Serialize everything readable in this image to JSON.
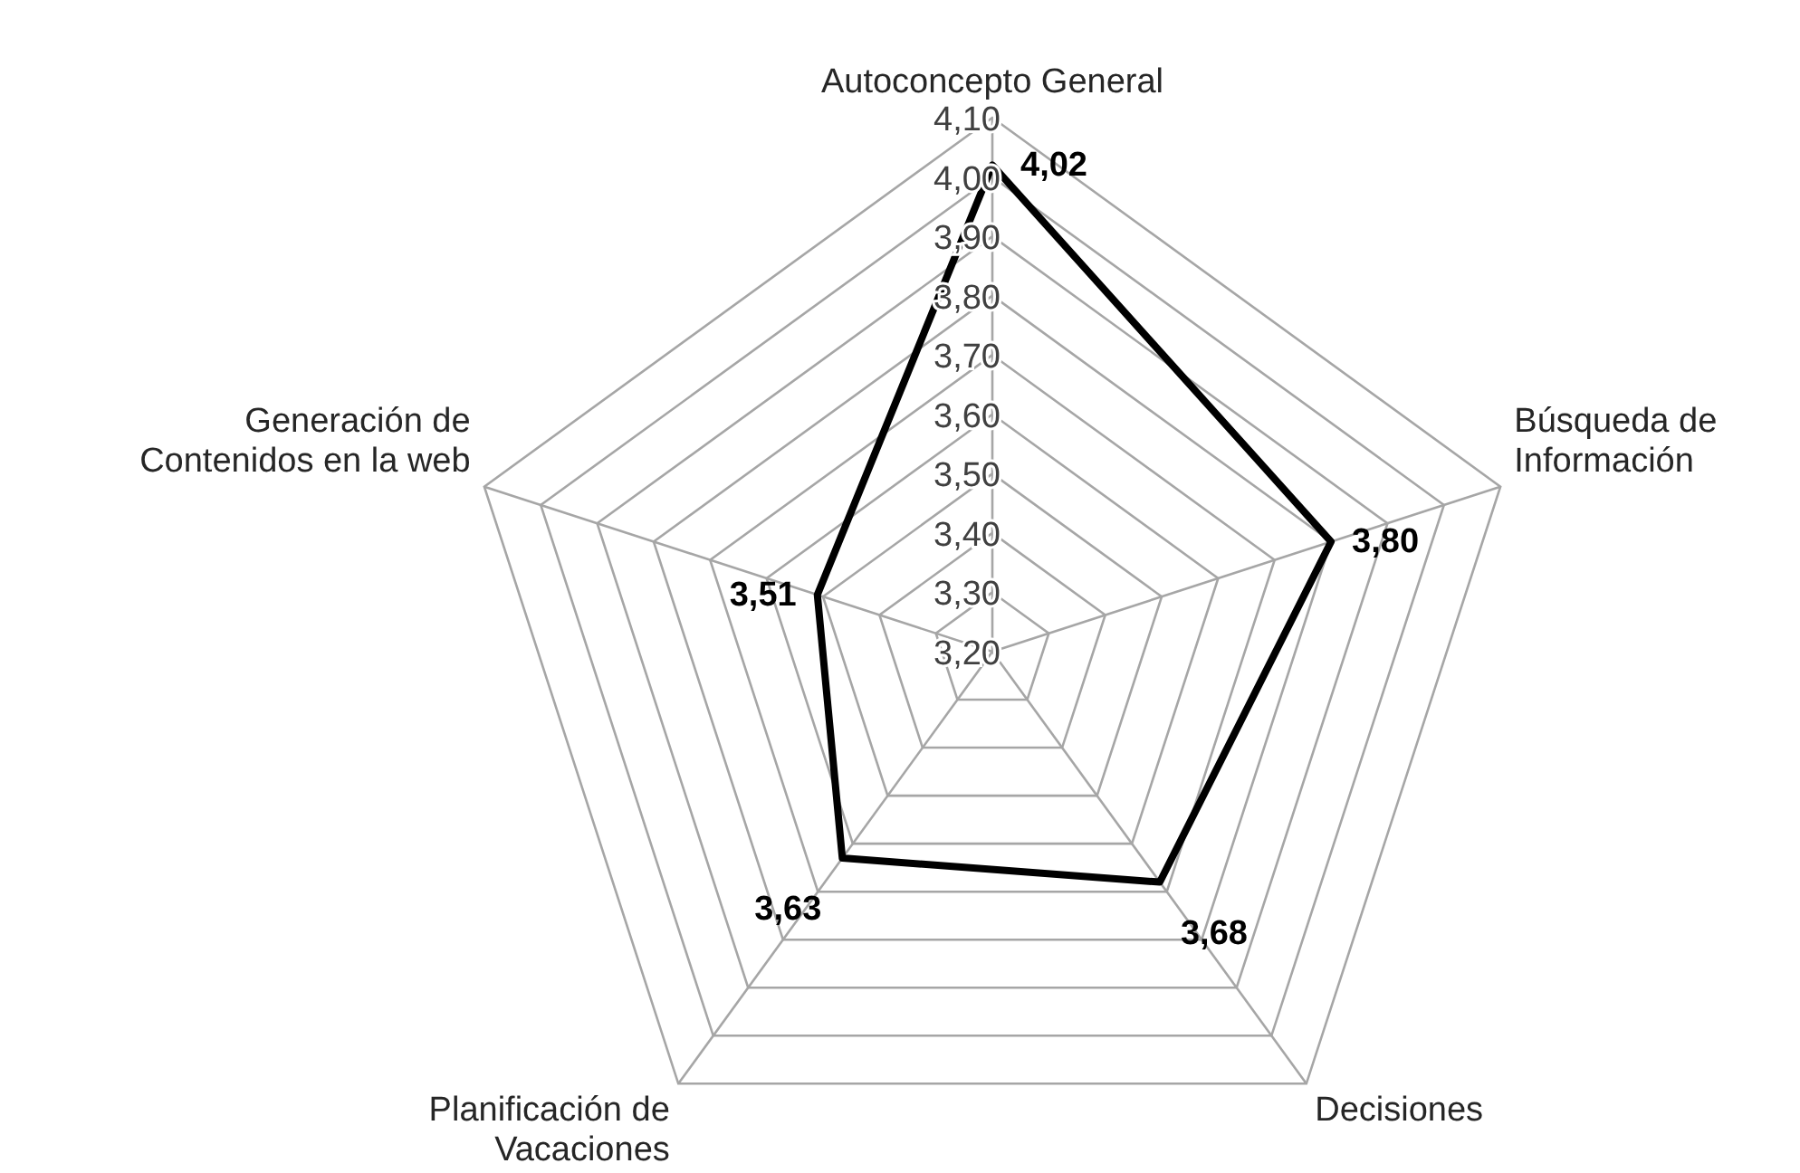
{
  "chart_data": {
    "type": "radar",
    "categories": [
      "Autoconcepto General",
      "Búsqueda de Información",
      "Decisiones",
      "Planificación de Vacaciones",
      "Generación de Contenidos en la web"
    ],
    "series": [
      {
        "color": "#000000",
        "values": [
          4.02,
          3.8,
          3.68,
          3.63,
          3.51
        ],
        "value_labels": [
          "4,02",
          "3,80",
          "3,68",
          "3,63",
          "3,51"
        ]
      }
    ],
    "ylim": [
      3.2,
      4.1
    ],
    "yticks": [
      {
        "value": 3.2,
        "label": "3,20"
      },
      {
        "value": 3.3,
        "label": "3,30"
      },
      {
        "value": 3.4,
        "label": "3,40"
      },
      {
        "value": 3.5,
        "label": "3,50"
      },
      {
        "value": 3.6,
        "label": "3,60"
      },
      {
        "value": 3.7,
        "label": "3,70"
      },
      {
        "value": 3.8,
        "label": "3,80"
      },
      {
        "value": 3.9,
        "label": "3,90"
      },
      {
        "value": 4.0,
        "label": "4,00"
      },
      {
        "value": 4.1,
        "label": "4,10"
      }
    ],
    "grid": true,
    "legend": false,
    "marker": "none",
    "line_style": "solid"
  }
}
